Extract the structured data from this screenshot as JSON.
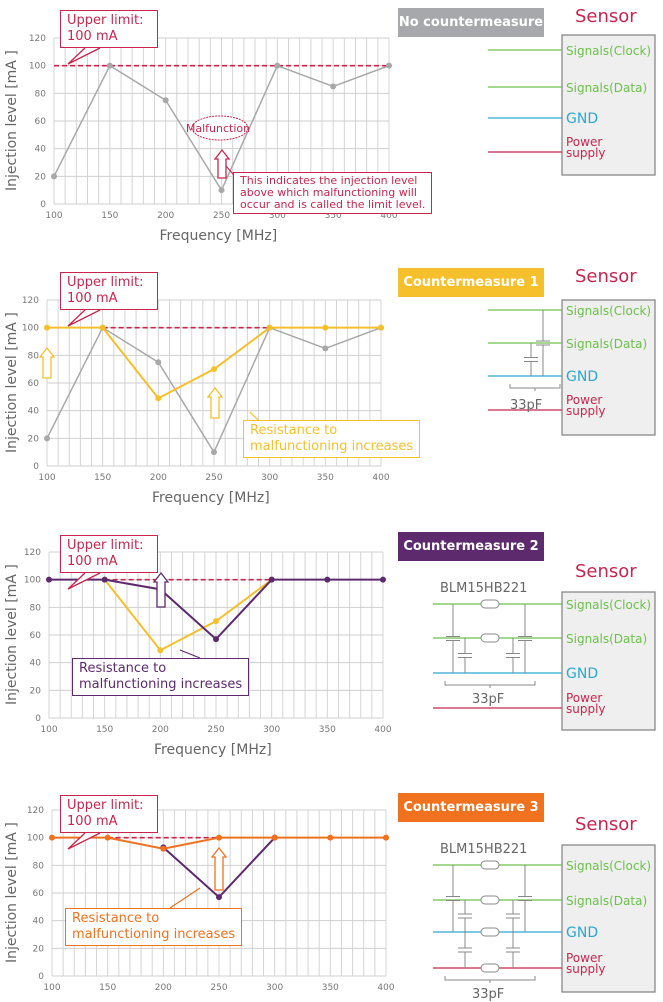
{
  "common": {
    "upper_limit": "Upper limit:\n100 mA",
    "ylabel": "Injection level [mA ]",
    "xlabel": "Frequency  [MHz]",
    "sensor": "Sensor",
    "signals": [
      "Signals(Clock)",
      "Signals(Data)",
      "GND",
      "Power\nsupply"
    ],
    "cap": "33pF",
    "bead": "BLM15HB221"
  },
  "colors": {
    "limit": "#c8264f",
    "gray": "#a8a8a8",
    "yellow": "#f5c02b",
    "purple": "#5e2a6e",
    "orange": "#f0711e",
    "clock": "#6cc04a",
    "gnd": "#2aa8d0",
    "power": "#c8264f"
  },
  "panels": [
    {
      "badge": "No countermeasure",
      "badge_color": "#a6a8ab",
      "malfunction": "Malfunction",
      "note": "This indicates the injection level\nabove which malfunctioning will\noccur and is called the limit level."
    },
    {
      "badge": "Countermeasure 1",
      "badge_color": "#f5c02b",
      "note": "Resistance to\nmalfunctioning increases"
    },
    {
      "badge": "Countermeasure 2",
      "badge_color": "#5e2a6e",
      "note": "Resistance to\nmalfunctioning increases"
    },
    {
      "badge": "Countermeasure 3",
      "badge_color": "#f0711e",
      "note": "Resistance to\nmalfunctioning increases"
    }
  ],
  "chart_data": [
    {
      "type": "line",
      "xlabel": "Frequency  [MHz]",
      "ylabel": "Injection level [mA ]",
      "x": [
        100,
        150,
        200,
        250,
        300,
        350,
        400
      ],
      "ylim": [
        0,
        120
      ],
      "yticks": [
        0,
        20,
        40,
        60,
        80,
        100,
        120
      ],
      "grid": true,
      "limit": {
        "value": 100,
        "from": 100,
        "to": 400
      },
      "series": [
        {
          "color": "#a8a8a8",
          "values": [
            20,
            100,
            75,
            10,
            100,
            85,
            100
          ]
        }
      ]
    },
    {
      "type": "line",
      "xlabel": "Frequency  [MHz]",
      "ylabel": "Injection level [mA ]",
      "x": [
        100,
        150,
        200,
        250,
        300,
        350,
        400
      ],
      "ylim": [
        0,
        120
      ],
      "yticks": [
        0,
        20,
        40,
        60,
        80,
        100,
        120
      ],
      "grid": true,
      "limit": {
        "value": 100,
        "from": 150,
        "to": 300
      },
      "series": [
        {
          "color": "#a8a8a8",
          "values": [
            20,
            100,
            75,
            10,
            100,
            85,
            100
          ]
        },
        {
          "color": "#f5c02b",
          "values": [
            100,
            100,
            49,
            70,
            100,
            100,
            100
          ]
        }
      ]
    },
    {
      "type": "line",
      "xlabel": "Frequency  [MHz]",
      "ylabel": "Injection level [mA ]",
      "x": [
        100,
        150,
        200,
        250,
        300,
        350,
        400
      ],
      "ylim": [
        0,
        120
      ],
      "yticks": [
        0,
        20,
        40,
        60,
        80,
        100,
        120
      ],
      "grid": true,
      "limit": {
        "value": 100,
        "from": 150,
        "to": 300
      },
      "series": [
        {
          "color": "#f5c02b",
          "values": [
            null,
            100,
            49,
            70,
            100,
            null,
            null
          ]
        },
        {
          "color": "#5e2a6e",
          "values": [
            100,
            100,
            93,
            57,
            100,
            100,
            100
          ]
        }
      ]
    },
    {
      "type": "line",
      "xlabel": "",
      "ylabel": "Injection level [mA ]",
      "x": [
        100,
        150,
        200,
        250,
        300,
        350,
        400
      ],
      "ylim": [
        0,
        120
      ],
      "yticks": [
        0,
        20,
        40,
        60,
        80,
        100,
        120
      ],
      "grid": true,
      "limit": {
        "value": 100,
        "from": 150,
        "to": 250
      },
      "series": [
        {
          "color": "#5e2a6e",
          "values": [
            null,
            null,
            93,
            57,
            100,
            null,
            null
          ]
        },
        {
          "color": "#f0711e",
          "values": [
            100,
            100,
            92,
            100,
            100,
            100,
            100
          ]
        }
      ]
    }
  ]
}
